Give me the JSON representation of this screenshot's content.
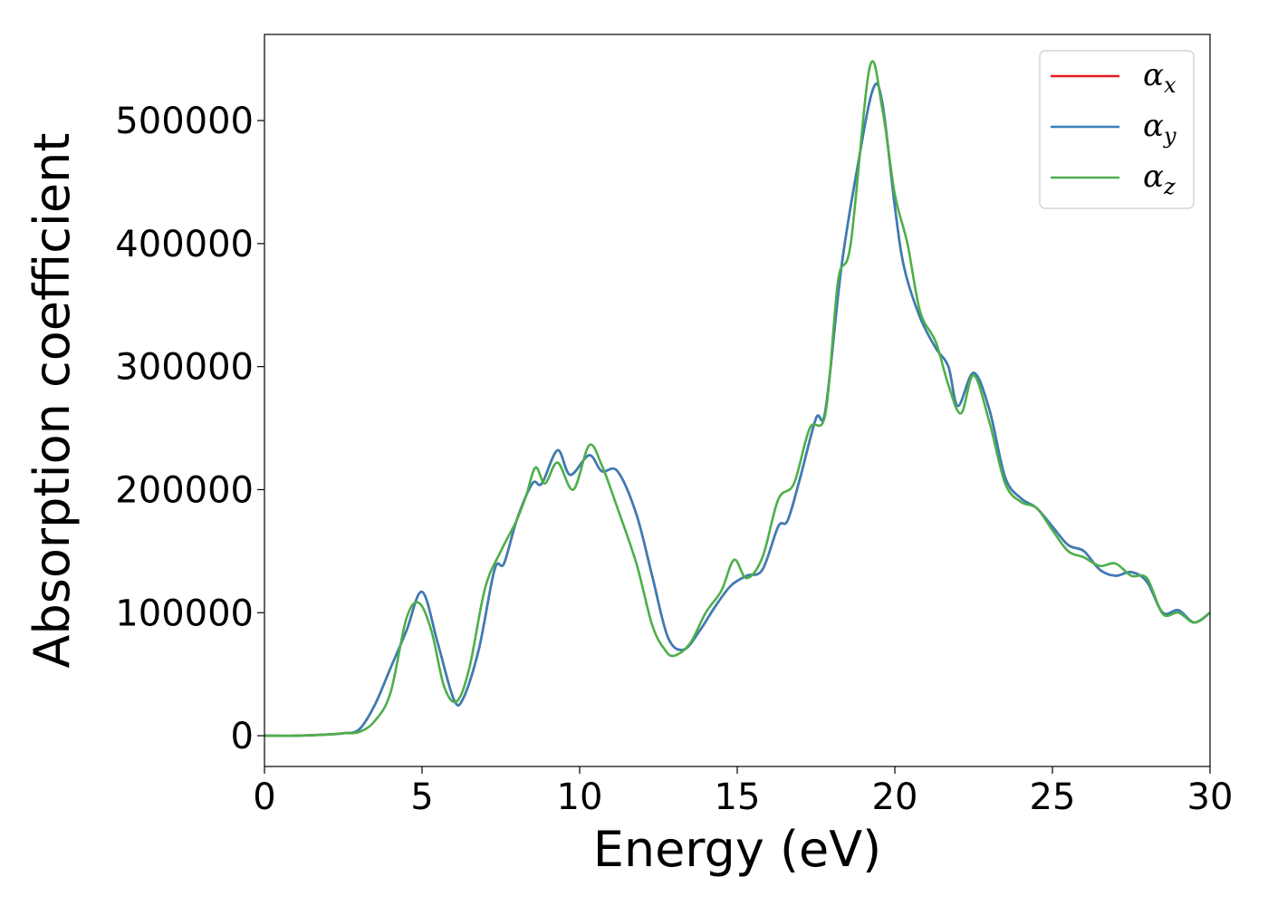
{
  "chart_data": {
    "type": "line",
    "xlabel": "Energy (eV)",
    "ylabel": "Absorption coefficient",
    "xlim": [
      0,
      30
    ],
    "ylim": [
      -25000,
      570000
    ],
    "xticks": [
      0,
      5,
      10,
      15,
      20,
      25,
      30
    ],
    "xtick_labels": [
      "0",
      "5",
      "10",
      "15",
      "20",
      "25",
      "30"
    ],
    "yticks": [
      0,
      100000,
      200000,
      300000,
      400000,
      500000
    ],
    "ytick_labels": [
      "0",
      "100000",
      "200000",
      "300000",
      "400000",
      "500000"
    ],
    "grid": false,
    "legend_position": "top-right",
    "legend": [
      {
        "base": "α",
        "sub": "x",
        "color": "#e41a1c"
      },
      {
        "base": "α",
        "sub": "y",
        "color": "#377eb8"
      },
      {
        "base": "α",
        "sub": "z",
        "color": "#4daf4a"
      }
    ],
    "series": [
      {
        "name": "αx",
        "color": "#e41a1c",
        "x": [
          0,
          1,
          2,
          2.5,
          3,
          3.5,
          4,
          4.5,
          5,
          5.5,
          6,
          6.3,
          6.8,
          7.3,
          7.6,
          8,
          8.5,
          8.8,
          9.3,
          9.7,
          10.3,
          10.7,
          11.2,
          11.8,
          12.3,
          12.8,
          13.3,
          13.8,
          14.3,
          14.8,
          15.3,
          15.8,
          16.3,
          16.6,
          17,
          17.5,
          17.8,
          18.3,
          18.8,
          19.3,
          19.6,
          20,
          20.3,
          20.8,
          21.3,
          21.7,
          22,
          22.5,
          23,
          23.5,
          24,
          24.5,
          25,
          25.5,
          26,
          26.5,
          27,
          27.5,
          28,
          28.5,
          29,
          29.5,
          30
        ],
        "y": [
          0,
          0,
          1000,
          2000,
          5000,
          25000,
          55000,
          85000,
          117000,
          75000,
          30000,
          30000,
          70000,
          135000,
          140000,
          175000,
          205000,
          205000,
          232000,
          212000,
          228000,
          215000,
          215000,
          180000,
          130000,
          80000,
          70000,
          85000,
          105000,
          122000,
          130000,
          135000,
          170000,
          175000,
          210000,
          258000,
          265000,
          380000,
          460000,
          525000,
          515000,
          430000,
          380000,
          340000,
          315000,
          300000,
          268000,
          295000,
          265000,
          210000,
          193000,
          185000,
          170000,
          155000,
          150000,
          135000,
          130000,
          133000,
          125000,
          100000,
          102000,
          92000,
          100000
        ]
      },
      {
        "name": "αy",
        "color": "#377eb8",
        "x": [
          0,
          1,
          2,
          2.5,
          3,
          3.5,
          4,
          4.5,
          5,
          5.5,
          6,
          6.3,
          6.8,
          7.3,
          7.6,
          8,
          8.5,
          8.8,
          9.3,
          9.7,
          10.3,
          10.7,
          11.2,
          11.8,
          12.3,
          12.8,
          13.3,
          13.8,
          14.3,
          14.8,
          15.3,
          15.8,
          16.3,
          16.6,
          17,
          17.5,
          17.8,
          18.3,
          18.8,
          19.3,
          19.6,
          20,
          20.3,
          20.8,
          21.3,
          21.7,
          22,
          22.5,
          23,
          23.5,
          24,
          24.5,
          25,
          25.5,
          26,
          26.5,
          27,
          27.5,
          28,
          28.5,
          29,
          29.5,
          30
        ],
        "y": [
          0,
          0,
          1000,
          2000,
          5000,
          25000,
          55000,
          85000,
          117000,
          75000,
          30000,
          30000,
          70000,
          135000,
          140000,
          175000,
          205000,
          205000,
          232000,
          212000,
          228000,
          215000,
          215000,
          180000,
          130000,
          80000,
          70000,
          85000,
          105000,
          122000,
          130000,
          135000,
          170000,
          175000,
          210000,
          258000,
          265000,
          380000,
          460000,
          525000,
          515000,
          430000,
          380000,
          340000,
          315000,
          300000,
          268000,
          295000,
          265000,
          210000,
          193000,
          185000,
          170000,
          155000,
          150000,
          135000,
          130000,
          133000,
          125000,
          100000,
          102000,
          92000,
          100000
        ]
      },
      {
        "name": "αz",
        "color": "#4daf4a",
        "x": [
          0,
          1,
          2,
          2.5,
          3,
          3.5,
          4,
          4.5,
          4.9,
          5.3,
          5.7,
          6.1,
          6.5,
          7,
          7.5,
          8,
          8.3,
          8.6,
          8.9,
          9.3,
          9.8,
          10.3,
          10.7,
          11.2,
          11.8,
          12.3,
          12.7,
          13,
          13.5,
          14,
          14.5,
          14.9,
          15.3,
          15.8,
          16.3,
          16.8,
          17.3,
          17.8,
          18.2,
          18.6,
          19.2,
          19.6,
          20,
          20.4,
          20.8,
          21.3,
          21.7,
          22.1,
          22.5,
          23,
          23.5,
          24,
          24.5,
          25,
          25.5,
          26,
          26.5,
          27,
          27.5,
          28,
          28.5,
          29,
          29.5,
          30
        ],
        "y": [
          0,
          0,
          1000,
          2000,
          3000,
          12000,
          35000,
          95000,
          108000,
          85000,
          40000,
          28000,
          55000,
          120000,
          150000,
          175000,
          195000,
          218000,
          205000,
          222000,
          200000,
          236000,
          220000,
          185000,
          140000,
          90000,
          70000,
          65000,
          75000,
          100000,
          118000,
          143000,
          128000,
          145000,
          192000,
          205000,
          250000,
          262000,
          370000,
          400000,
          543000,
          510000,
          440000,
          400000,
          345000,
          320000,
          285000,
          262000,
          293000,
          255000,
          205000,
          190000,
          185000,
          167000,
          150000,
          145000,
          138000,
          140000,
          130000,
          128000,
          99000,
          100000,
          92000,
          100000
        ]
      }
    ]
  }
}
